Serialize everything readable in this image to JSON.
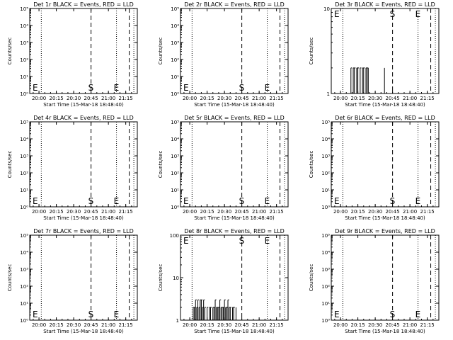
{
  "panels": [
    {
      "title": "Det 1r BLACK = Events, RED = LLD",
      "ylabel": "Counts/sec",
      "xlabel": "Start Time (15-Mar-18 18:48:40)",
      "yticks": [
        "10⁰",
        "10¹",
        "10²",
        "10³",
        "10⁴",
        "10⁵"
      ],
      "xticks": [
        "20:00",
        "20:15",
        "20:30",
        "20:45",
        "21:00",
        "21:15"
      ],
      "markers": [
        {
          "text": "E",
          "pos": "bottom-left"
        },
        {
          "text": "S",
          "pos": "bottom"
        },
        {
          "text": "E",
          "pos": "bottom"
        }
      ],
      "data": "none"
    },
    {
      "title": "Det 2r BLACK = Events, RED = LLD",
      "ylabel": "Counts/sec",
      "xlabel": "Start Time (15-Mar-18 18:48:40)",
      "yticks": [
        "10⁰",
        "10¹",
        "10²",
        "10³",
        "10⁴",
        "10⁵"
      ],
      "xticks": [
        "20:00",
        "20:15",
        "20:30",
        "20:45",
        "21:00",
        "21:15"
      ],
      "markers": [
        {
          "text": "E",
          "pos": "bottom-left"
        },
        {
          "text": "S",
          "pos": "bottom"
        },
        {
          "text": "E",
          "pos": "bottom"
        }
      ],
      "data": "none"
    },
    {
      "title": "Det 3r BLACK = Events, RED = LLD",
      "ylabel": "Counts/sec",
      "xlabel": "Start Time (15-Mar-18 18:48:40)",
      "yticks": [
        "1",
        "10"
      ],
      "xticks": [
        "20:00",
        "20:15",
        "20:30",
        "20:45",
        "21:00",
        "21:15"
      ],
      "markers": [
        {
          "text": "E",
          "pos": "top-left"
        },
        {
          "text": "S",
          "pos": "top"
        },
        {
          "text": "E",
          "pos": "top"
        }
      ],
      "data": "spikes"
    },
    {
      "title": "Det 4r BLACK = Events, RED = LLD",
      "ylabel": "Counts/sec",
      "xlabel": "Start Time (15-Mar-18 18:48:40)",
      "yticks": [
        "10⁰",
        "10¹",
        "10²",
        "10³",
        "10⁴",
        "10⁵"
      ],
      "xticks": [
        "20:00",
        "20:15",
        "20:30",
        "20:45",
        "21:00",
        "21:15"
      ],
      "markers": [
        {
          "text": "E",
          "pos": "bottom-left"
        },
        {
          "text": "S",
          "pos": "bottom"
        },
        {
          "text": "E",
          "pos": "bottom"
        }
      ],
      "data": "none"
    },
    {
      "title": "Det 5r BLACK = Events, RED = LLD",
      "ylabel": "Counts/sec",
      "xlabel": "Start Time (15-Mar-18 18:48:40)",
      "yticks": [
        "10⁰",
        "10¹",
        "10²",
        "10³",
        "10⁴",
        "10⁵"
      ],
      "xticks": [
        "20:00",
        "20:15",
        "20:30",
        "20:45",
        "21:00",
        "21:15"
      ],
      "markers": [
        {
          "text": "E",
          "pos": "bottom-left"
        },
        {
          "text": "S",
          "pos": "bottom"
        },
        {
          "text": "E",
          "pos": "bottom"
        }
      ],
      "data": "none"
    },
    {
      "title": "Det 6r BLACK = Events, RED = LLD",
      "ylabel": "Counts/sec",
      "xlabel": "Start Time (15-Mar-18 18:48:40)",
      "yticks": [
        "10⁰",
        "10¹",
        "10²",
        "10³",
        "10⁴",
        "10⁵"
      ],
      "xticks": [
        "20:00",
        "20:15",
        "20:30",
        "20:45",
        "21:00",
        "21:15"
      ],
      "markers": [
        {
          "text": "E",
          "pos": "bottom-left"
        },
        {
          "text": "S",
          "pos": "bottom"
        },
        {
          "text": "E",
          "pos": "bottom"
        }
      ],
      "data": "none"
    },
    {
      "title": "Det 7r BLACK = Events, RED = LLD",
      "ylabel": "Counts/sec",
      "xlabel": "Start Time (15-Mar-18 18:48:40)",
      "yticks": [
        "10⁰",
        "10¹",
        "10²",
        "10³",
        "10⁴",
        "10⁵"
      ],
      "xticks": [
        "20:00",
        "20:15",
        "20:30",
        "20:45",
        "21:00",
        "21:15"
      ],
      "markers": [
        {
          "text": "E",
          "pos": "bottom-left"
        },
        {
          "text": "S",
          "pos": "bottom"
        },
        {
          "text": "E",
          "pos": "bottom"
        }
      ],
      "data": "none"
    },
    {
      "title": "Det 8r BLACK = Events, RED = LLD",
      "ylabel": "Counts/sec",
      "xlabel": "Start Time (15-Mar-18 18:48:40)",
      "yticks": [
        "1",
        "10",
        "100"
      ],
      "xticks": [
        "20:00",
        "20:15",
        "20:30",
        "20:45",
        "21:00",
        "21:15"
      ],
      "markers": [
        {
          "text": "E",
          "pos": "top-left"
        },
        {
          "text": "S",
          "pos": "top"
        },
        {
          "text": "E",
          "pos": "top"
        }
      ],
      "data": "spikes"
    },
    {
      "title": "Det 9r BLACK = Events, RED = LLD",
      "ylabel": "Counts/sec",
      "xlabel": "Start Time (15-Mar-18 18:48:40)",
      "yticks": [
        "10⁰",
        "10¹",
        "10²",
        "10³",
        "10⁴",
        "10⁵"
      ],
      "xticks": [
        "20:00",
        "20:15",
        "20:30",
        "20:45",
        "21:00",
        "21:15"
      ],
      "markers": [
        {
          "text": "E",
          "pos": "bottom-left"
        },
        {
          "text": "S",
          "pos": "bottom"
        },
        {
          "text": "E",
          "pos": "bottom"
        }
      ],
      "data": "none"
    }
  ],
  "chart_data": [
    {
      "type": "line",
      "title": "Det 1r BLACK = Events, RED = LLD",
      "xlabel": "Start Time (15-Mar-18 18:48:40)",
      "ylabel": "Counts/sec",
      "yscale": "log",
      "ylim": [
        1,
        100000
      ],
      "xlim": [
        "19:52",
        "21:25"
      ],
      "series": []
    },
    {
      "type": "line",
      "title": "Det 2r BLACK = Events, RED = LLD",
      "xlabel": "Start Time (15-Mar-18 18:48:40)",
      "ylabel": "Counts/sec",
      "yscale": "log",
      "ylim": [
        1,
        100000
      ],
      "xlim": [
        "19:52",
        "21:25"
      ],
      "series": []
    },
    {
      "type": "line",
      "title": "Det 3r BLACK = Events, RED = LLD",
      "xlabel": "Start Time (15-Mar-18 18:48:40)",
      "ylabel": "Counts/sec",
      "yscale": "log",
      "ylim": [
        1,
        10
      ],
      "xlim": [
        "19:52",
        "21:25"
      ],
      "series": [
        {
          "x": [
            "20:09",
            "20:10",
            "20:11",
            "20:12",
            "20:13",
            "20:14",
            "20:15",
            "20:16",
            "20:17",
            "20:18",
            "20:19",
            "20:20",
            "20:21",
            "20:22",
            "20:23",
            "20:24",
            "20:38"
          ],
          "y": [
            2,
            1,
            2,
            2,
            1,
            2,
            2,
            1,
            2,
            1,
            2,
            2,
            1,
            2,
            2,
            2,
            2
          ]
        }
      ]
    },
    {
      "type": "line",
      "title": "Det 4r BLACK = Events, RED = LLD",
      "xlabel": "Start Time (15-Mar-18 18:48:40)",
      "ylabel": "Counts/sec",
      "yscale": "log",
      "ylim": [
        1,
        100000
      ],
      "xlim": [
        "19:52",
        "21:25"
      ],
      "series": []
    },
    {
      "type": "line",
      "title": "Det 5r BLACK = Events, RED = LLD",
      "xlabel": "Start Time (15-Mar-18 18:48:40)",
      "ylabel": "Counts/sec",
      "yscale": "log",
      "ylim": [
        1,
        100000
      ],
      "xlim": [
        "19:52",
        "21:25"
      ],
      "series": []
    },
    {
      "type": "line",
      "title": "Det 6r BLACK = Events, RED = LLD",
      "xlabel": "Start Time (15-Mar-18 18:48:40)",
      "ylabel": "Counts/sec",
      "yscale": "log",
      "ylim": [
        1,
        100000
      ],
      "xlim": [
        "19:52",
        "21:25"
      ],
      "series": []
    },
    {
      "type": "line",
      "title": "Det 7r BLACK = Events, RED = LLD",
      "xlabel": "Start Time (15-Mar-18 18:48:40)",
      "ylabel": "Counts/sec",
      "yscale": "log",
      "ylim": [
        1,
        100000
      ],
      "xlim": [
        "19:52",
        "21:25"
      ],
      "series": []
    },
    {
      "type": "line",
      "title": "Det 8r BLACK = Events, RED = LLD",
      "xlabel": "Start Time (15-Mar-18 18:48:40)",
      "ylabel": "Counts/sec",
      "yscale": "log",
      "ylim": [
        1,
        100
      ],
      "xlim": [
        "19:52",
        "21:25"
      ],
      "series": [
        {
          "x": [
            "20:03",
            "20:04",
            "20:05",
            "20:06",
            "20:07",
            "20:08",
            "20:09",
            "20:10",
            "20:11",
            "20:12",
            "20:13",
            "20:14",
            "20:15",
            "20:16",
            "20:17",
            "20:18",
            "20:19",
            "20:20",
            "20:21",
            "20:22",
            "20:23",
            "20:24",
            "20:25",
            "20:26",
            "20:27",
            "20:28",
            "20:29",
            "20:30",
            "20:31",
            "20:32",
            "20:33",
            "20:34",
            "20:35",
            "20:36",
            "20:37",
            "20:38",
            "20:39",
            "20:40"
          ],
          "y": [
            2,
            2,
            3,
            2,
            3,
            2,
            3,
            3,
            2,
            3,
            2,
            1,
            2,
            1,
            2,
            2,
            1,
            2,
            2,
            3,
            2,
            2,
            2,
            3,
            2,
            2,
            2,
            3,
            2,
            2,
            3,
            2,
            2,
            1,
            2,
            2,
            1,
            2
          ]
        }
      ]
    },
    {
      "type": "line",
      "title": "Det 9r BLACK = Events, RED = LLD",
      "xlabel": "Start Time (15-Mar-18 18:48:40)",
      "ylabel": "Counts/sec",
      "yscale": "log",
      "ylim": [
        1,
        100000
      ],
      "xlim": [
        "19:52",
        "21:25"
      ],
      "series": []
    }
  ],
  "vlines": {
    "dotted": [
      "20:02",
      "21:07",
      "21:22"
    ],
    "dashed": [
      "20:45",
      "21:18"
    ]
  },
  "colors": {
    "background": "#ffffff",
    "foreground": "#000000"
  }
}
